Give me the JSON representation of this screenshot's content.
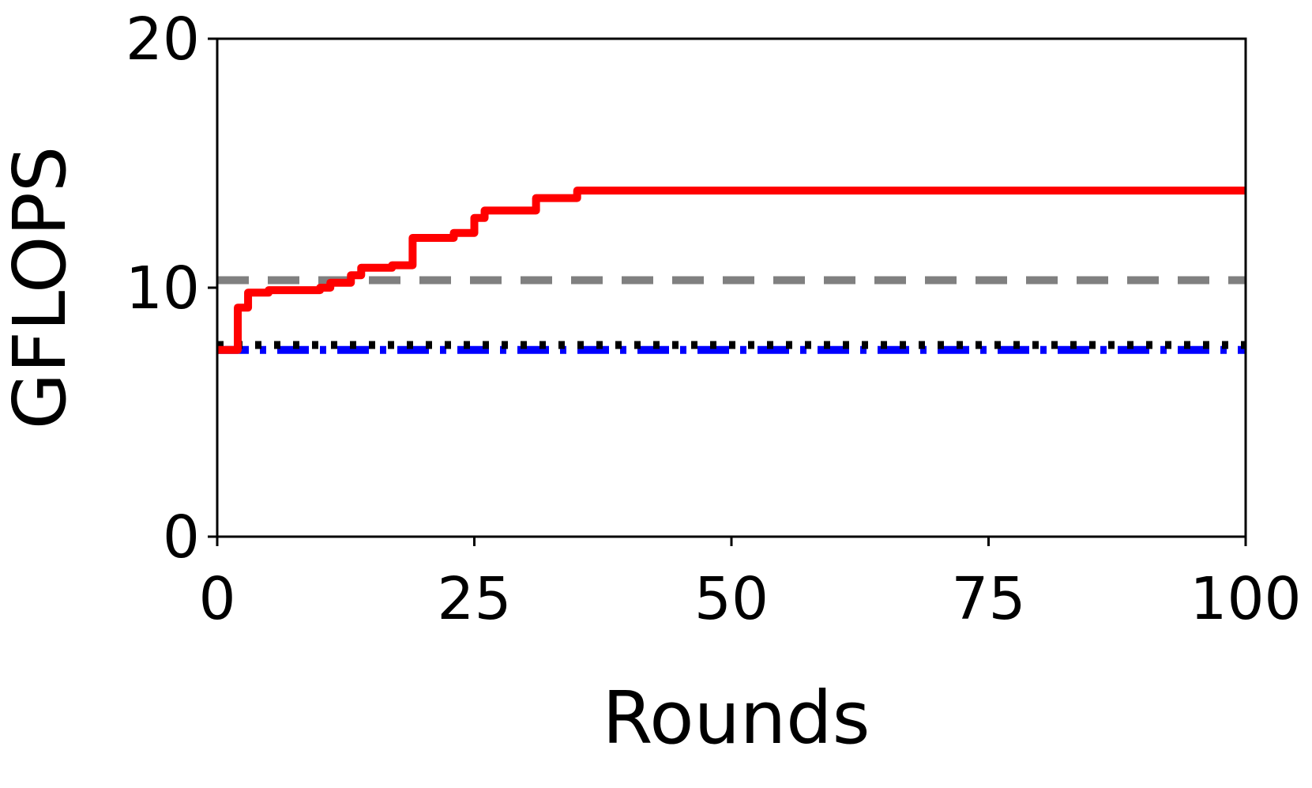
{
  "chart_data": {
    "type": "line",
    "xlabel": "Rounds",
    "ylabel": "GFLOPS",
    "xlim": [
      0,
      100
    ],
    "xticks": [
      0,
      25,
      50,
      75,
      100
    ],
    "ylim": [
      0,
      20
    ],
    "yticks": [
      0,
      10,
      20
    ],
    "step": "post",
    "series": [
      {
        "color": "#808080",
        "dash": "dashed",
        "x": [
          0,
          100
        ],
        "values": [
          10.3,
          10.3
        ]
      },
      {
        "color": "#0000ff",
        "dash": "dashdot",
        "x": [
          0,
          100
        ],
        "values": [
          7.5,
          7.5
        ]
      },
      {
        "color": "#000000",
        "dash": "dotted",
        "x": [
          0,
          100
        ],
        "values": [
          7.7,
          7.7
        ]
      },
      {
        "color": "#ff0000",
        "dash": "solid",
        "x": [
          0,
          2,
          3,
          5,
          10,
          11,
          13,
          14,
          17,
          19,
          23,
          25,
          26,
          31,
          35,
          100
        ],
        "values": [
          7.5,
          9.2,
          9.8,
          9.9,
          10.0,
          10.2,
          10.5,
          10.8,
          10.9,
          12.0,
          12.2,
          12.8,
          13.1,
          13.6,
          13.9,
          13.9
        ]
      }
    ]
  }
}
